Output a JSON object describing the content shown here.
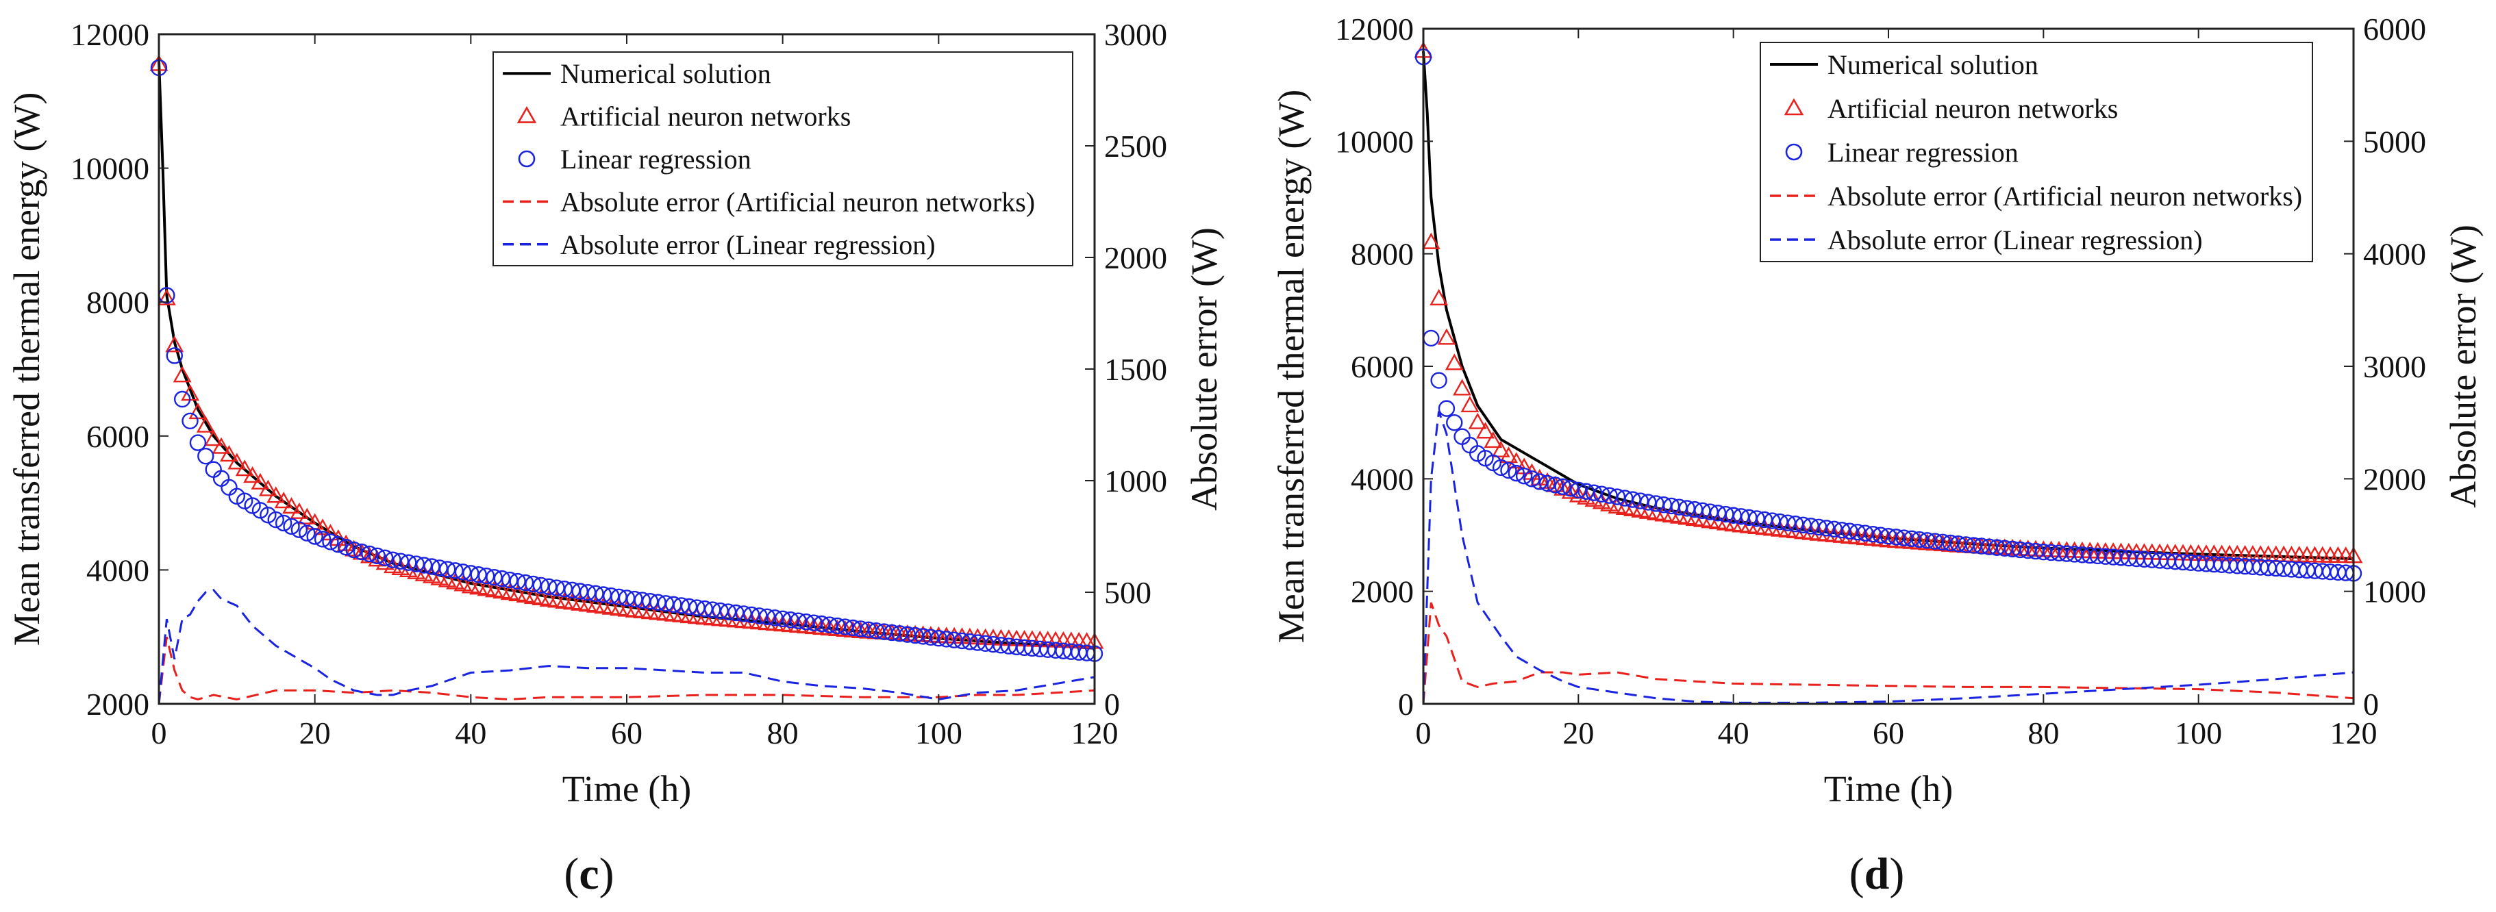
{
  "figure": {
    "panels": [
      "c",
      "d"
    ]
  },
  "chart_data": [
    {
      "panel": "c",
      "caption": {
        "open": "(",
        "letter": "c",
        "close": ")"
      },
      "type": "line",
      "xlabel": "Time (h)",
      "ylabel_left": "Mean transferred thermal energy (W)",
      "ylabel_right": "Absolute error (W)",
      "xlim": [
        0,
        120
      ],
      "ylim_left": [
        2000,
        12000
      ],
      "ylim_right": [
        0,
        3000
      ],
      "xticks": [
        0,
        20,
        40,
        60,
        80,
        100,
        120
      ],
      "yticks_left": [
        2000,
        4000,
        6000,
        8000,
        10000,
        12000
      ],
      "yticks_right": [
        0,
        500,
        1000,
        1500,
        2000,
        2500,
        3000
      ],
      "legend_position": "top-right",
      "colors": {
        "numerical": "#000000",
        "ann": "#e8211d",
        "lr": "#1a24e0"
      },
      "legend": [
        {
          "label": "Numerical solution",
          "style": "solid",
          "color": "#000000"
        },
        {
          "label": "Artificial neuron networks",
          "style": "triangle",
          "color": "#e8211d"
        },
        {
          "label": "Linear regression",
          "style": "circle",
          "color": "#1a24e0"
        },
        {
          "label": "Absolute error (Artificial neuron networks)",
          "style": "dashed",
          "color": "#e8211d"
        },
        {
          "label": "Absolute error (Linear regression)",
          "style": "dashed",
          "color": "#1a24e0"
        }
      ],
      "series": {
        "numerical": {
          "x": [
            0,
            0.5,
            1,
            2,
            3,
            5,
            7,
            10,
            15,
            20,
            25,
            30,
            40,
            50,
            60,
            70,
            80,
            90,
            100,
            110,
            120
          ],
          "y": [
            11600,
            10000,
            8100,
            7400,
            7000,
            6400,
            6000,
            5600,
            5100,
            4700,
            4350,
            4100,
            3800,
            3600,
            3450,
            3300,
            3200,
            3080,
            2980,
            2900,
            2830
          ]
        },
        "ann": {
          "x": [
            0,
            1,
            2,
            3,
            5,
            7,
            10,
            15,
            20,
            25,
            30,
            40,
            50,
            60,
            70,
            80,
            90,
            100,
            110,
            120
          ],
          "y": [
            11550,
            8050,
            7350,
            6900,
            6350,
            5950,
            5600,
            5100,
            4700,
            4300,
            4050,
            3750,
            3550,
            3400,
            3280,
            3180,
            3080,
            3010,
            2960,
            2920
          ]
        },
        "lr": {
          "x": [
            0,
            1,
            2,
            3,
            5,
            7,
            10,
            15,
            20,
            25,
            30,
            40,
            50,
            60,
            70,
            80,
            90,
            100,
            110,
            120
          ],
          "y": [
            11500,
            8100,
            7200,
            6550,
            5900,
            5500,
            5100,
            4750,
            4500,
            4300,
            4150,
            3950,
            3750,
            3580,
            3420,
            3270,
            3120,
            2980,
            2850,
            2750
          ]
        },
        "ann_error": {
          "x": [
            0,
            1,
            2,
            3,
            4,
            5,
            7,
            10,
            15,
            20,
            25,
            30,
            35,
            40,
            45,
            50,
            60,
            70,
            80,
            90,
            100,
            105,
            110,
            120
          ],
          "y": [
            0,
            300,
            150,
            60,
            30,
            20,
            40,
            20,
            60,
            60,
            50,
            60,
            50,
            30,
            20,
            30,
            30,
            40,
            40,
            30,
            30,
            40,
            40,
            60
          ]
        },
        "lr_error": {
          "x": [
            0,
            1,
            2,
            3,
            4,
            5,
            6,
            7,
            8,
            10,
            12,
            15,
            18,
            20,
            22,
            25,
            28,
            30,
            32,
            35,
            40,
            45,
            50,
            55,
            60,
            65,
            70,
            75,
            80,
            85,
            90,
            95,
            100,
            105,
            110,
            115,
            120
          ],
          "y": [
            0,
            380,
            200,
            380,
            400,
            460,
            500,
            510,
            470,
            440,
            350,
            260,
            200,
            160,
            110,
            60,
            40,
            40,
            60,
            80,
            140,
            150,
            170,
            160,
            160,
            150,
            140,
            140,
            100,
            80,
            70,
            50,
            20,
            50,
            60,
            90,
            120
          ]
        }
      }
    },
    {
      "panel": "d",
      "caption": {
        "open": "(",
        "letter": "d",
        "close": ")"
      },
      "type": "line",
      "xlabel": "Time (h)",
      "ylabel_left": "Mean transferred thermal energy (W)",
      "ylabel_right": "Absolute error (W)",
      "xlim": [
        0,
        120
      ],
      "ylim_left": [
        0,
        12000
      ],
      "ylim_right": [
        0,
        6000
      ],
      "xticks": [
        0,
        20,
        40,
        60,
        80,
        100,
        120
      ],
      "yticks_left": [
        0,
        2000,
        4000,
        6000,
        8000,
        10000,
        12000
      ],
      "yticks_right": [
        0,
        1000,
        2000,
        3000,
        4000,
        5000,
        6000
      ],
      "legend_position": "top-right",
      "colors": {
        "numerical": "#000000",
        "ann": "#e8211d",
        "lr": "#1a24e0"
      },
      "legend": [
        {
          "label": "Numerical solution",
          "style": "solid",
          "color": "#000000"
        },
        {
          "label": "Artificial neuron networks",
          "style": "triangle",
          "color": "#e8211d"
        },
        {
          "label": "Linear regression",
          "style": "circle",
          "color": "#1a24e0"
        },
        {
          "label": "Absolute error (Artificial neuron networks)",
          "style": "dashed",
          "color": "#e8211d"
        },
        {
          "label": "Absolute error (Linear regression)",
          "style": "dashed",
          "color": "#1a24e0"
        }
      ],
      "series": {
        "numerical": {
          "x": [
            0,
            0.5,
            1,
            2,
            3,
            5,
            7,
            10,
            15,
            20,
            25,
            30,
            40,
            50,
            60,
            70,
            80,
            90,
            100,
            110,
            120
          ],
          "y": [
            11600,
            10500,
            9000,
            7800,
            7000,
            6000,
            5300,
            4700,
            4300,
            3900,
            3650,
            3480,
            3250,
            3080,
            2950,
            2850,
            2770,
            2710,
            2660,
            2620,
            2580
          ]
        },
        "ann": {
          "x": [
            0,
            1,
            2,
            3,
            5,
            7,
            10,
            15,
            20,
            25,
            30,
            40,
            50,
            60,
            70,
            80,
            90,
            100,
            110,
            120
          ],
          "y": [
            11600,
            8200,
            7200,
            6500,
            5600,
            5000,
            4500,
            4000,
            3700,
            3500,
            3380,
            3180,
            3030,
            2900,
            2800,
            2730,
            2690,
            2660,
            2640,
            2620
          ]
        },
        "lr": {
          "x": [
            0,
            1,
            2,
            3,
            5,
            7,
            10,
            15,
            20,
            25,
            30,
            40,
            50,
            60,
            70,
            80,
            90,
            100,
            110,
            120
          ],
          "y": [
            11500,
            6500,
            5750,
            5250,
            4750,
            4450,
            4200,
            3950,
            3800,
            3680,
            3560,
            3350,
            3160,
            2980,
            2830,
            2700,
            2600,
            2500,
            2410,
            2320
          ]
        },
        "ann_error": {
          "x": [
            0,
            1,
            2,
            3,
            5,
            7,
            9,
            12,
            15,
            18,
            20,
            25,
            30,
            35,
            40,
            50,
            60,
            70,
            80,
            90,
            100,
            110,
            120
          ],
          "y": [
            0,
            900,
            700,
            600,
            200,
            150,
            180,
            200,
            280,
            280,
            260,
            280,
            220,
            200,
            180,
            170,
            160,
            150,
            150,
            140,
            130,
            100,
            50
          ]
        },
        "lr_error": {
          "x": [
            0,
            1,
            2,
            3,
            5,
            7,
            10,
            12,
            15,
            18,
            20,
            25,
            30,
            35,
            40,
            50,
            60,
            70,
            80,
            90,
            100,
            110,
            120
          ],
          "y": [
            0,
            2000,
            2600,
            2400,
            1500,
            900,
            600,
            420,
            300,
            200,
            150,
            100,
            50,
            20,
            10,
            10,
            20,
            50,
            90,
            130,
            170,
            220,
            280
          ]
        }
      }
    }
  ]
}
